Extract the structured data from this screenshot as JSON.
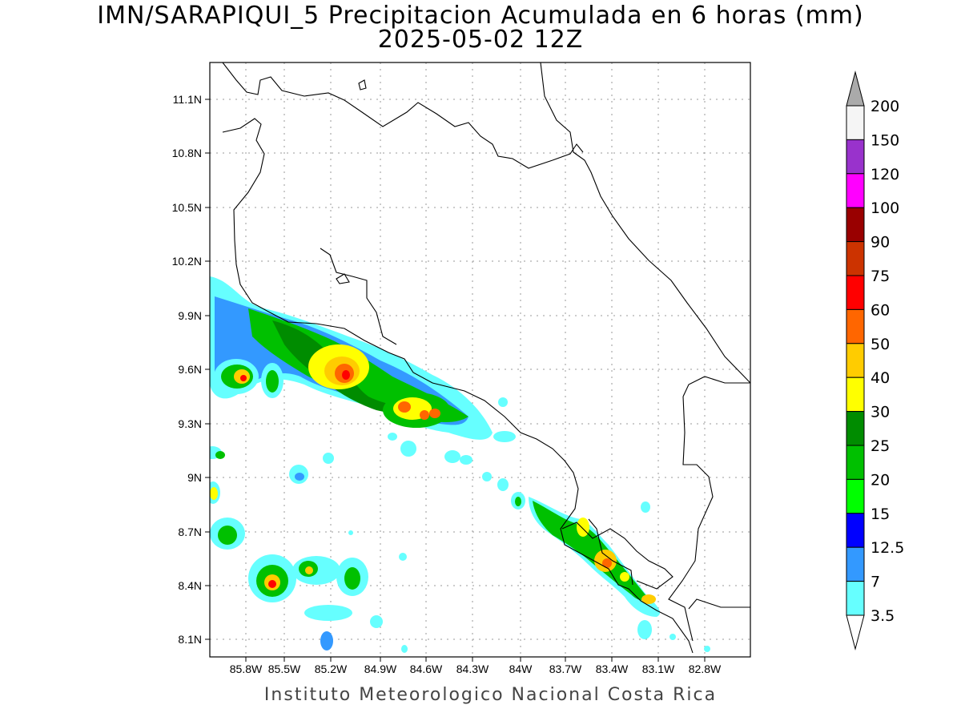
{
  "title": {
    "line1": "IMN/SARAPIQUI_5 Precipitacion Acumulada en 6 horas (mm)",
    "line2": "2025-05-02 12Z"
  },
  "footer": "Instituto Meteorologico Nacional Costa Rica",
  "map": {
    "lon_range": [
      -86.0,
      -83.0
    ],
    "lat_range": [
      8.0,
      11.3
    ],
    "lat_ticks": [
      "11.1N",
      "10.8N",
      "10.5N",
      "10.2N",
      "9.9N",
      "9.6N",
      "9.3N",
      "9N",
      "8.7N",
      "8.4N",
      "8.1N"
    ],
    "lon_ticks": [
      "85.8W",
      "85.5W",
      "85.2W",
      "84.9W",
      "84.6W",
      "84.3W",
      "84W",
      "83.7W",
      "83.4W",
      "83.1W",
      "82.8W"
    ]
  },
  "colorbar": {
    "labels": [
      "200",
      "150",
      "120",
      "100",
      "90",
      "75",
      "60",
      "50",
      "40",
      "30",
      "25",
      "20",
      "15",
      "12.5",
      "7",
      "3.5"
    ],
    "colors": [
      "#f5f5f5",
      "#9932cc",
      "#ff00ff",
      "#990000",
      "#cc3300",
      "#ff0000",
      "#ff6600",
      "#ffcc00",
      "#ffff00",
      "#008c00",
      "#00c000",
      "#00ff00",
      "#0000ff",
      "#3399ff",
      "#66ffff"
    ],
    "over_color": "#aaaaaa"
  }
}
